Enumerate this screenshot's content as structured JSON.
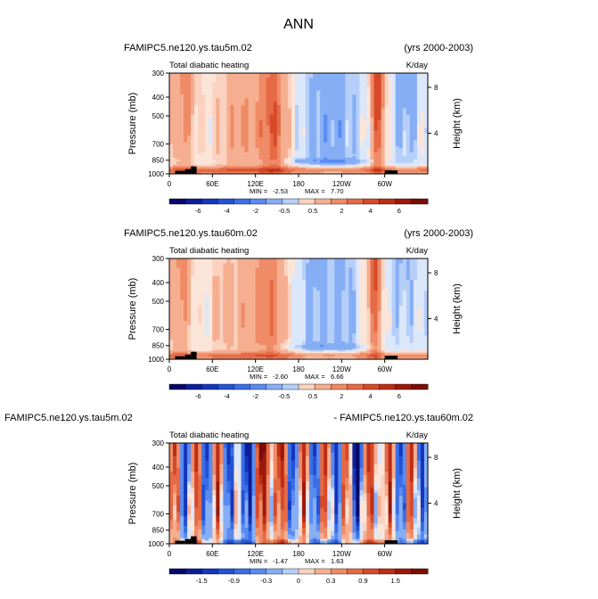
{
  "figure": {
    "title": "ANN",
    "x_ticks": [
      "0",
      "60E",
      "120E",
      "180",
      "120W",
      "60W"
    ],
    "pressure_ticks": [
      "300",
      "400",
      "500",
      "700",
      "850",
      "1000"
    ],
    "height_ticks": [
      "8",
      "4"
    ],
    "ylabel": "Pressure (mb)",
    "y2label": "Height (km)"
  },
  "chart_data": [
    {
      "type": "heatmap",
      "case": "FAMIPC5.ne120.ys.tau5m.02",
      "years": "(yrs 2000-2003)",
      "variable": "Total diabatic heating",
      "units": "K/day",
      "min_label": "MIN =",
      "min_value": "-2.53",
      "max_label": "MAX =",
      "max_value": "7.70",
      "colorbar_labels": [
        "-6",
        "-4",
        "-2",
        "-0.5",
        "0.5",
        "2",
        "4",
        "6"
      ],
      "x_ticks": [
        "0",
        "60E",
        "120E",
        "180",
        "120W",
        "60W"
      ],
      "pressure_ticks": [
        "300",
        "400",
        "500",
        "700",
        "850",
        "1000"
      ],
      "height_ticks": [
        "8",
        "4"
      ],
      "xlabel": "",
      "ylabel": "Pressure (mb)",
      "y2label": "Height (km)"
    },
    {
      "type": "heatmap",
      "case": "FAMIPC5.ne120.ys.tau60m.02",
      "years": "(yrs 2000-2003)",
      "variable": "Total diabatic heating",
      "units": "K/day",
      "min_label": "MIN =",
      "min_value": "-2.60",
      "max_label": "MAX =",
      "max_value": "6.66",
      "colorbar_labels": [
        "-6",
        "-4",
        "-2",
        "-0.5",
        "0.5",
        "2",
        "4",
        "6"
      ],
      "x_ticks": [
        "0",
        "60E",
        "120E",
        "180",
        "120W",
        "60W"
      ],
      "pressure_ticks": [
        "300",
        "400",
        "500",
        "700",
        "850",
        "1000"
      ],
      "height_ticks": [
        "8",
        "4"
      ],
      "xlabel": "",
      "ylabel": "Pressure (mb)",
      "y2label": "Height (km)"
    },
    {
      "type": "heatmap",
      "case": "FAMIPC5.ne120.ys.tau5m.02",
      "years": "- FAMIPC5.ne120.ys.tau60m.02",
      "variable": "Total diabatic heating",
      "units": "K/day",
      "min_label": "MIN =",
      "min_value": "-1.47",
      "max_label": "MAX =",
      "max_value": "1.63",
      "colorbar_labels": [
        "-1.5",
        "-0.9",
        "-0.3",
        "0",
        "0.3",
        "0.9",
        "1.5"
      ],
      "x_ticks": [
        "0",
        "60E",
        "120E",
        "180",
        "120W",
        "60W"
      ],
      "pressure_ticks": [
        "300",
        "400",
        "500",
        "700",
        "850",
        "1000"
      ],
      "height_ticks": [
        "8",
        "4"
      ],
      "xlabel": "",
      "ylabel": "Pressure (mb)",
      "y2label": "Height (km)"
    }
  ]
}
